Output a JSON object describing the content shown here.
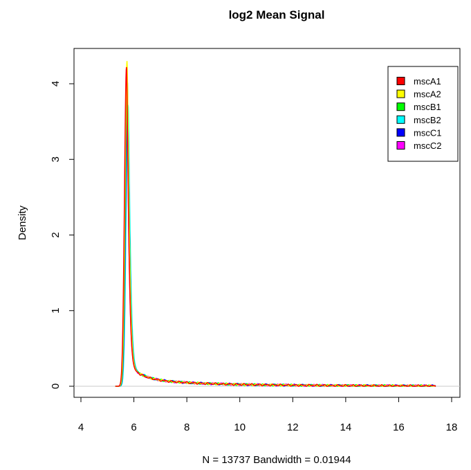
{
  "chart_data": {
    "type": "line",
    "title": "log2 Mean Signal",
    "xlabel": "N = 13737   Bandwidth = 0.01944",
    "ylabel": "Density",
    "xlim": [
      4,
      18
    ],
    "ylim": [
      0,
      4.3
    ],
    "x_ticks": [
      4,
      6,
      8,
      10,
      12,
      14,
      16,
      18
    ],
    "y_ticks": [
      0,
      1,
      2,
      3,
      4
    ],
    "legend_position": "top-right",
    "baseline": 0,
    "baseline_color": "#c8c8c8",
    "series": [
      {
        "name": "mscA1",
        "color": "#ff0000",
        "peak_x": 5.72,
        "peak_y": 4.22,
        "x_start": 5.3,
        "x_end": 17.4
      },
      {
        "name": "mscA2",
        "color": "#ffff00",
        "peak_x": 5.74,
        "peak_y": 4.3,
        "x_start": 5.3,
        "x_end": 17.4
      },
      {
        "name": "mscB1",
        "color": "#00ff00",
        "peak_x": 5.75,
        "peak_y": 4.05,
        "x_start": 5.3,
        "x_end": 17.4
      },
      {
        "name": "mscB2",
        "color": "#00ffff",
        "peak_x": 5.78,
        "peak_y": 3.72,
        "x_start": 5.3,
        "x_end": 17.4
      },
      {
        "name": "mscC1",
        "color": "#0000ff",
        "peak_x": 5.76,
        "peak_y": 3.73,
        "x_start": 5.3,
        "x_end": 17.4
      },
      {
        "name": "mscC2",
        "color": "#ff00ff",
        "peak_x": 5.73,
        "peak_y": 3.65,
        "x_start": 5.3,
        "x_end": 17.4
      }
    ]
  }
}
